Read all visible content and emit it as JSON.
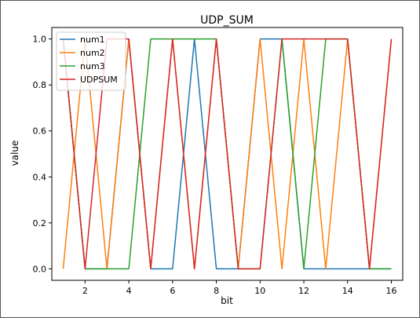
{
  "chart_data": {
    "type": "line",
    "title": "UDP_SUM",
    "xlabel": "bit",
    "ylabel": "value",
    "xlim": [
      0.48,
      16.52
    ],
    "ylim": [
      -0.05,
      1.05
    ],
    "x": [
      1,
      2,
      3,
      4,
      5,
      6,
      7,
      8,
      9,
      10,
      11,
      12,
      13,
      14,
      15,
      16
    ],
    "xticks": [
      2,
      4,
      6,
      8,
      10,
      12,
      14,
      16
    ],
    "xtick_labels": [
      "2",
      "4",
      "6",
      "8",
      "10",
      "12",
      "14",
      "16"
    ],
    "yticks": [
      0,
      0.2,
      0.4,
      0.6,
      0.8,
      1.0
    ],
    "ytick_labels": [
      "0.0",
      "0.2",
      "0.4",
      "0.6",
      "0.8",
      "1.0"
    ],
    "grid": false,
    "legend_position": "top-left",
    "series": [
      {
        "name": "num1",
        "color": "#1f77b4",
        "values": [
          1,
          0,
          0,
          1,
          0,
          0,
          1,
          0,
          0,
          1,
          1,
          0,
          0,
          0,
          0,
          0
        ]
      },
      {
        "name": "num2",
        "color": "#ff7f0e",
        "values": [
          0,
          1,
          0,
          1,
          0,
          1,
          0,
          1,
          0,
          1,
          0,
          1,
          0,
          1,
          0,
          1
        ]
      },
      {
        "name": "num3",
        "color": "#2ca02c",
        "values": [
          1,
          0,
          0,
          0,
          1,
          1,
          1,
          1,
          0,
          0,
          1,
          0,
          1,
          1,
          0,
          0
        ]
      },
      {
        "name": "UDPSUM",
        "color": "#d62728",
        "values": [
          1,
          0,
          1,
          1,
          0,
          1,
          0,
          1,
          0,
          0,
          1,
          1,
          1,
          1,
          0,
          1
        ]
      }
    ]
  }
}
